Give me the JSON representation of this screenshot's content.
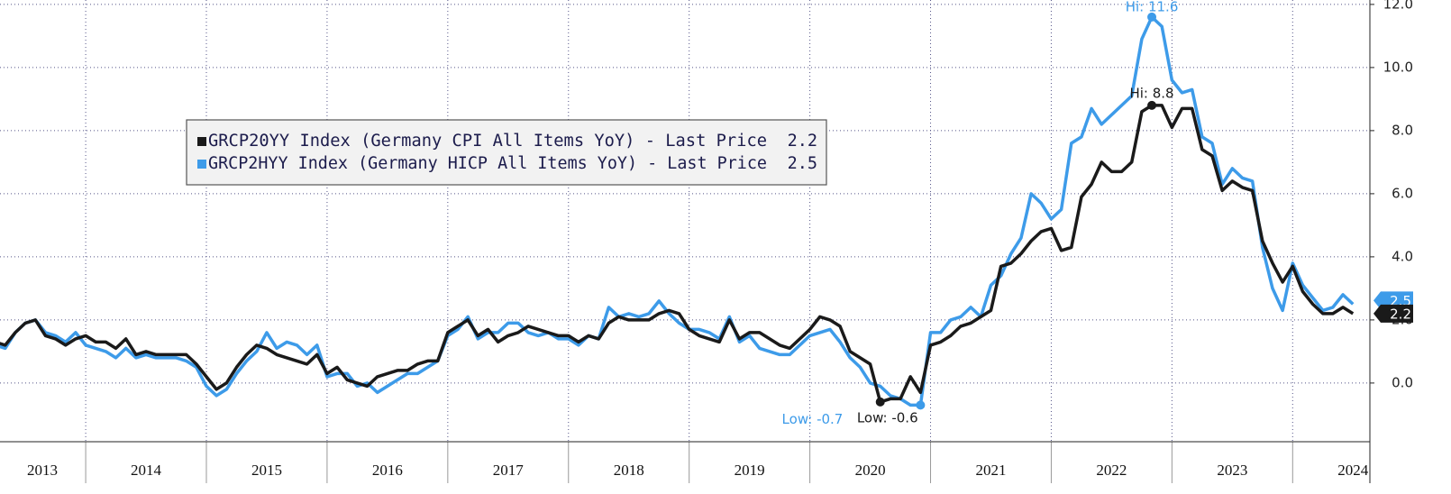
{
  "chart_data": {
    "type": "line",
    "x": [
      2013.25,
      2013.3333,
      2013.4167,
      2013.5,
      2013.5833,
      2013.6667,
      2013.75,
      2013.8333,
      2013.9167,
      2014,
      2014.0833,
      2014.1667,
      2014.25,
      2014.3333,
      2014.4167,
      2014.5,
      2014.5833,
      2014.6667,
      2014.75,
      2014.8333,
      2014.9167,
      2015,
      2015.0833,
      2015.1667,
      2015.25,
      2015.3333,
      2015.4167,
      2015.5,
      2015.5833,
      2015.6667,
      2015.75,
      2015.8333,
      2015.9167,
      2016,
      2016.0833,
      2016.1667,
      2016.25,
      2016.3333,
      2016.4167,
      2016.5,
      2016.5833,
      2016.6667,
      2016.75,
      2016.8333,
      2016.9167,
      2017,
      2017.0833,
      2017.1667,
      2017.25,
      2017.3333,
      2017.4167,
      2017.5,
      2017.5833,
      2017.6667,
      2017.75,
      2017.8333,
      2017.9167,
      2018,
      2018.0833,
      2018.1667,
      2018.25,
      2018.3333,
      2018.4167,
      2018.5,
      2018.5833,
      2018.6667,
      2018.75,
      2018.8333,
      2018.9167,
      2019,
      2019.0833,
      2019.1667,
      2019.25,
      2019.3333,
      2019.4167,
      2019.5,
      2019.5833,
      2019.6667,
      2019.75,
      2019.8333,
      2019.9167,
      2020,
      2020.0833,
      2020.1667,
      2020.25,
      2020.3333,
      2020.4167,
      2020.5,
      2020.5833,
      2020.6667,
      2020.75,
      2020.8333,
      2020.9167,
      2021,
      2021.0833,
      2021.1667,
      2021.25,
      2021.3333,
      2021.4167,
      2021.5,
      2021.5833,
      2021.6667,
      2021.75,
      2021.8333,
      2021.9167,
      2022,
      2022.0833,
      2022.1667,
      2022.25,
      2022.3333,
      2022.4167,
      2022.5,
      2022.5833,
      2022.6667,
      2022.75,
      2022.8333,
      2022.9167,
      2023,
      2023.0833,
      2023.1667,
      2023.25,
      2023.3333,
      2023.4167,
      2023.5,
      2023.5833,
      2023.6667,
      2023.75,
      2023.8333,
      2023.9167,
      2024,
      2024.0833,
      2024.1667,
      2024.25,
      2024.3333,
      2024.4167,
      2024.5
    ],
    "series": [
      {
        "name": "GRCP20YY Index (Germany CPI All Items YoY) - Last Price",
        "color": "#1a1a1a",
        "values": [
          1.3,
          1.2,
          1.6,
          1.9,
          2.0,
          1.5,
          1.4,
          1.2,
          1.4,
          1.5,
          1.3,
          1.3,
          1.1,
          1.4,
          0.9,
          1.0,
          0.9,
          0.9,
          0.9,
          0.9,
          0.6,
          0.2,
          -0.2,
          0.0,
          0.5,
          0.9,
          1.2,
          1.1,
          0.9,
          0.8,
          0.7,
          0.6,
          0.9,
          0.3,
          0.5,
          0.1,
          0.0,
          -0.1,
          0.2,
          0.3,
          0.4,
          0.4,
          0.6,
          0.7,
          0.7,
          1.6,
          1.8,
          2.0,
          1.5,
          1.7,
          1.3,
          1.5,
          1.6,
          1.8,
          1.7,
          1.6,
          1.5,
          1.5,
          1.3,
          1.5,
          1.4,
          1.9,
          2.1,
          2.0,
          2.0,
          2.0,
          2.2,
          2.3,
          2.2,
          1.7,
          1.5,
          1.4,
          1.3,
          2.0,
          1.4,
          1.6,
          1.6,
          1.4,
          1.2,
          1.1,
          1.4,
          1.7,
          2.1,
          2.0,
          1.8,
          1.0,
          0.8,
          0.6,
          -0.6,
          -0.5,
          -0.5,
          0.2,
          -0.3,
          1.2,
          1.3,
          1.5,
          1.8,
          1.9,
          2.1,
          2.3,
          3.7,
          3.8,
          4.1,
          4.5,
          4.8,
          4.9,
          4.2,
          4.3,
          5.9,
          6.3,
          7.0,
          6.7,
          6.7,
          7.0,
          8.6,
          8.8,
          8.8,
          8.1,
          8.7,
          8.7,
          7.4,
          7.2,
          6.1,
          6.4,
          6.2,
          6.1,
          4.5,
          3.8,
          3.2,
          3.7,
          2.9,
          2.5,
          2.2,
          2.2,
          2.4,
          2.2
        ]
      },
      {
        "name": "GRCP2HYY Index (Germany HICP All Items YoY) - Last Price",
        "color": "#3d9be9",
        "values": [
          1.2,
          1.1,
          1.6,
          1.9,
          2.0,
          1.6,
          1.5,
          1.3,
          1.6,
          1.2,
          1.1,
          1.0,
          0.8,
          1.1,
          0.8,
          0.9,
          0.8,
          0.8,
          0.8,
          0.7,
          0.5,
          -0.1,
          -0.4,
          -0.2,
          0.3,
          0.7,
          1.0,
          1.6,
          1.1,
          1.3,
          1.2,
          0.9,
          1.2,
          0.2,
          0.3,
          0.3,
          -0.1,
          0.0,
          -0.3,
          -0.1,
          0.1,
          0.3,
          0.3,
          0.5,
          0.7,
          1.5,
          1.7,
          2.1,
          1.4,
          1.6,
          1.6,
          1.9,
          1.9,
          1.6,
          1.5,
          1.6,
          1.4,
          1.4,
          1.2,
          1.5,
          1.4,
          2.4,
          2.1,
          2.2,
          2.1,
          2.2,
          2.6,
          2.2,
          1.9,
          1.7,
          1.7,
          1.6,
          1.4,
          2.1,
          1.3,
          1.5,
          1.1,
          1.0,
          0.9,
          0.9,
          1.2,
          1.5,
          1.6,
          1.7,
          1.3,
          0.8,
          0.5,
          0.0,
          -0.1,
          -0.4,
          -0.5,
          -0.7,
          -0.7,
          1.6,
          1.6,
          2.0,
          2.1,
          2.4,
          2.1,
          3.1,
          3.4,
          4.1,
          4.6,
          6.0,
          5.7,
          5.2,
          5.5,
          7.6,
          7.8,
          8.7,
          8.2,
          8.5,
          8.8,
          9.1,
          10.9,
          11.6,
          11.3,
          9.6,
          9.2,
          9.3,
          7.8,
          7.6,
          6.3,
          6.8,
          6.5,
          6.4,
          4.3,
          3.0,
          2.3,
          3.8,
          3.1,
          2.7,
          2.3,
          2.4,
          2.8,
          2.5
        ]
      }
    ],
    "annotations": [
      {
        "text": "Hi: 11.6",
        "x": 2022.8333,
        "y": 11.6,
        "color": "#3d9be9"
      },
      {
        "text": "Hi: 8.8",
        "x": 2022.8333,
        "y": 8.8,
        "color": "#1a1a1a"
      },
      {
        "text": "Low: -0.7",
        "x": 2020.9167,
        "y": -0.7,
        "color": "#3d9be9"
      },
      {
        "text": "Low: -0.6",
        "x": 2020.5833,
        "y": -0.6,
        "color": "#1a1a1a"
      }
    ],
    "xlim": [
      2013.29,
      2024.64
    ],
    "ylim": [
      -1.86,
      12.14
    ],
    "xticks": [
      {
        "value": 2013.5,
        "label": "2013"
      },
      {
        "value": 2014.5,
        "label": "2014"
      },
      {
        "value": 2015.5,
        "label": "2015"
      },
      {
        "value": 2016.5,
        "label": "2016"
      },
      {
        "value": 2017.5,
        "label": "2017"
      },
      {
        "value": 2018.5,
        "label": "2018"
      },
      {
        "value": 2019.5,
        "label": "2019"
      },
      {
        "value": 2020.5,
        "label": "2020"
      },
      {
        "value": 2021.5,
        "label": "2021"
      },
      {
        "value": 2022.5,
        "label": "2022"
      },
      {
        "value": 2023.5,
        "label": "2023"
      },
      {
        "value": 2024.5,
        "label": "2024"
      }
    ],
    "yticks": [
      {
        "value": 0,
        "label": "0.0"
      },
      {
        "value": 2,
        "label": "2.0"
      },
      {
        "value": 4,
        "label": "4.0"
      },
      {
        "value": 6,
        "label": "6.0"
      },
      {
        "value": 8,
        "label": "8.0"
      },
      {
        "value": 10,
        "label": "10.0"
      },
      {
        "value": 12,
        "label": "12.0"
      }
    ],
    "grid": true,
    "y_axis_side": "right",
    "legend_position": "upper-left"
  }
}
